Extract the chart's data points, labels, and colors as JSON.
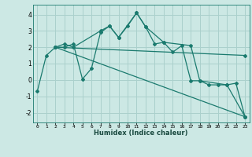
{
  "xlabel": "Humidex (Indice chaleur)",
  "ylabel": "",
  "bg_color": "#cce8e4",
  "grid_color": "#aad0cc",
  "line_color": "#1a7a6e",
  "xlim": [
    -0.5,
    23.5
  ],
  "ylim": [
    -2.6,
    4.6
  ],
  "xticks": [
    0,
    1,
    2,
    3,
    4,
    5,
    6,
    7,
    8,
    9,
    10,
    11,
    12,
    13,
    14,
    15,
    16,
    17,
    18,
    19,
    20,
    21,
    22,
    23
  ],
  "yticks": [
    -2,
    -1,
    0,
    1,
    2,
    3,
    4
  ],
  "lines": [
    {
      "x": [
        0,
        1,
        2,
        3,
        4,
        5,
        6,
        7,
        8,
        9,
        10,
        11,
        12,
        13,
        14,
        15,
        16,
        17,
        18,
        19,
        20,
        21,
        22,
        23
      ],
      "y": [
        -0.7,
        1.5,
        2.0,
        2.0,
        2.2,
        0.05,
        0.7,
        2.9,
        3.3,
        2.6,
        3.3,
        4.1,
        3.25,
        2.2,
        2.3,
        1.7,
        2.1,
        -0.05,
        -0.05,
        -0.3,
        -0.3,
        -0.3,
        -0.2,
        -2.25
      ]
    },
    {
      "x": [
        2,
        3,
        4,
        7,
        8,
        9,
        11,
        12,
        14,
        17,
        18,
        21,
        23
      ],
      "y": [
        2.0,
        2.2,
        2.0,
        3.0,
        3.3,
        2.6,
        4.1,
        3.25,
        2.3,
        2.1,
        -0.05,
        -0.3,
        -2.25
      ]
    },
    {
      "x": [
        2,
        23
      ],
      "y": [
        2.0,
        -2.25
      ]
    },
    {
      "x": [
        2,
        23
      ],
      "y": [
        2.0,
        1.5
      ]
    }
  ]
}
